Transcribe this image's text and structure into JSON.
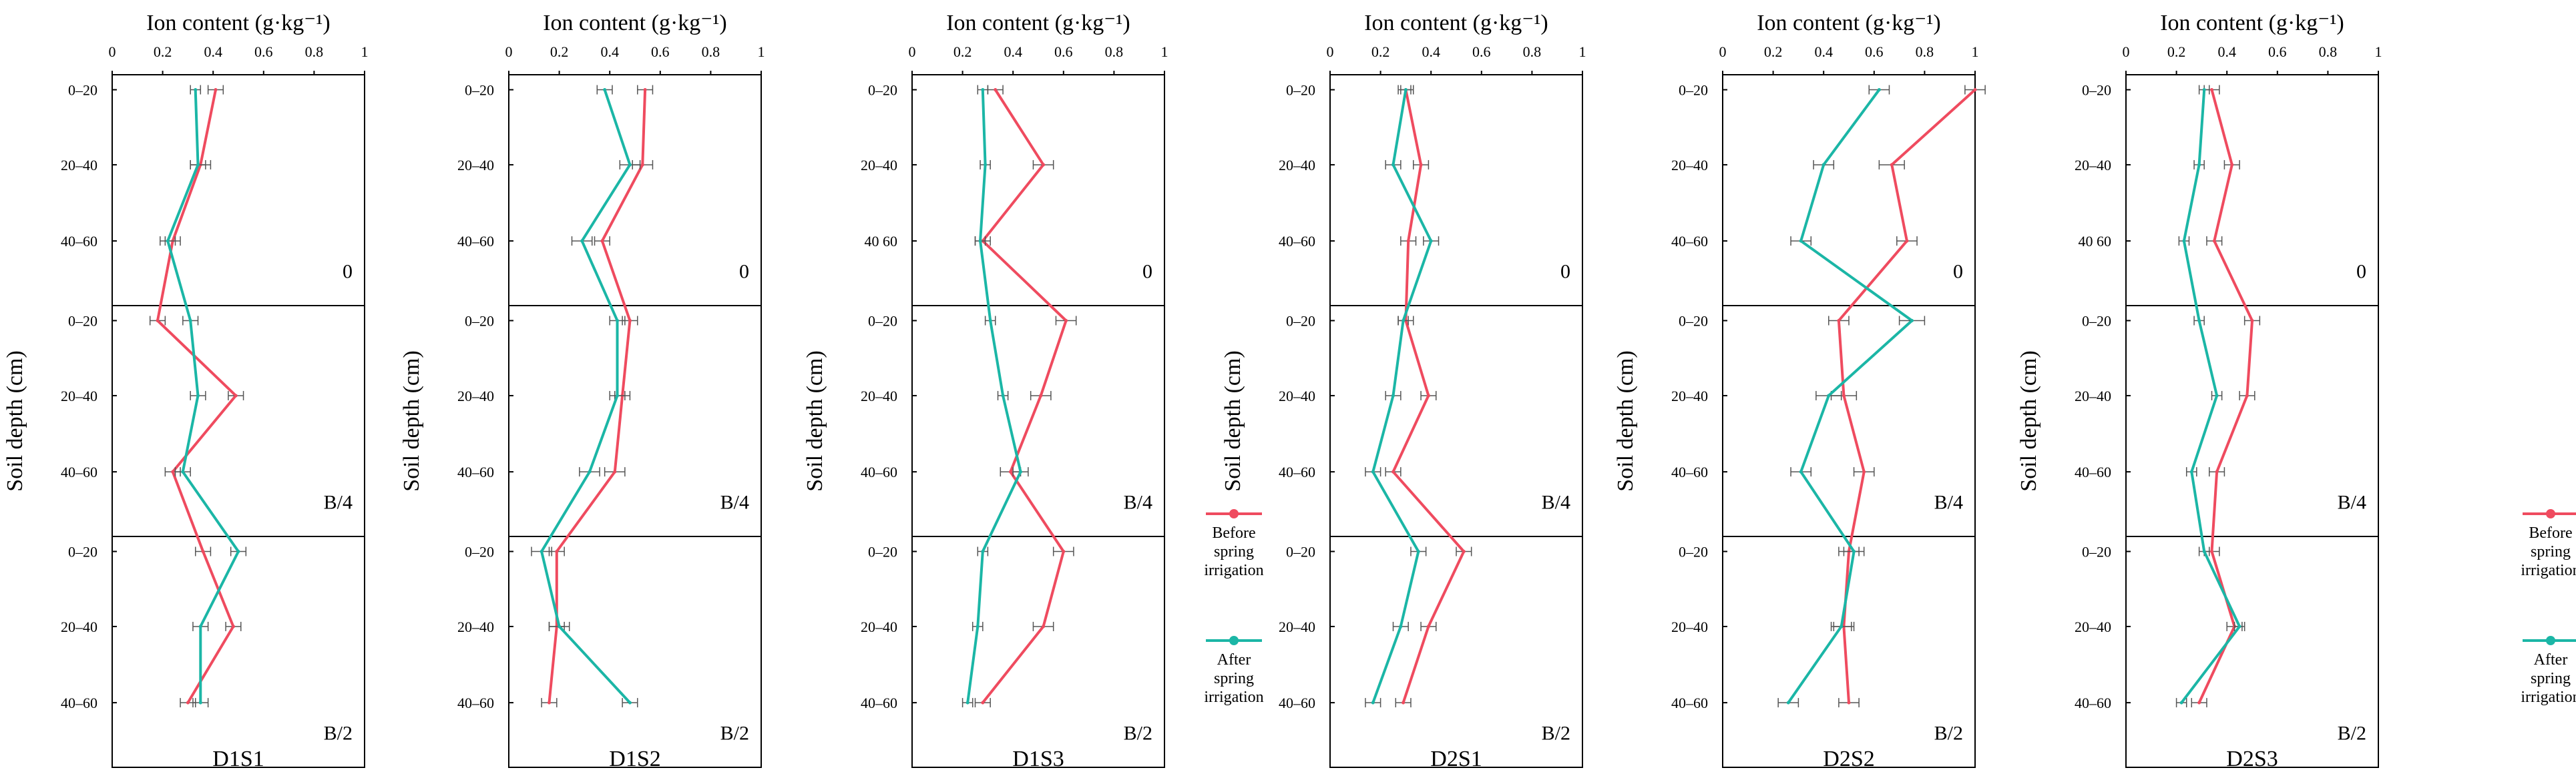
{
  "chart_data": {
    "type": "line",
    "orientation": "depth-profile",
    "colors": {
      "before": "#ef4b5f",
      "after": "#1bb6a6",
      "errorbar": "#555555"
    },
    "x_title": "Ion content (g·kg⁻¹)",
    "x_ticks": [
      "0",
      "0.2",
      "0.4",
      "0.6",
      "0.8",
      "1"
    ],
    "xlim": [
      0,
      1
    ],
    "y_title": "Soil depth (cm)",
    "subplot_labels": [
      "0",
      "B/4",
      "B/2"
    ],
    "legend": [
      "Before spring irrigation",
      "After spring irrigation"
    ],
    "legend_lines": [
      [
        "Before",
        "spring",
        "irrigation"
      ],
      [
        "After",
        "spring",
        "irrigation"
      ]
    ],
    "panels": [
      {
        "name": "D1S1",
        "y_ticks": [
          [
            "0–20",
            "20–40",
            "40–60"
          ],
          [
            "0–20",
            "20–40",
            "40–60"
          ],
          [
            "0–20",
            "20–40",
            "40–60"
          ]
        ],
        "series": [
          {
            "name": "Before spring irrigation",
            "values": [
              0.41,
              0.35,
              0.24,
              0.18,
              0.49,
              0.24,
              0.36,
              0.48,
              0.3
            ],
            "errors": [
              0.03,
              0.04,
              0.03,
              0.03,
              0.03,
              0.03,
              0.03,
              0.03,
              0.03
            ]
          },
          {
            "name": "After spring irrigation",
            "values": [
              0.33,
              0.34,
              0.22,
              0.31,
              0.34,
              0.28,
              0.5,
              0.35,
              0.35
            ],
            "errors": [
              0.02,
              0.03,
              0.03,
              0.03,
              0.03,
              0.03,
              0.03,
              0.03,
              0.03
            ]
          }
        ]
      },
      {
        "name": "D1S2",
        "y_ticks": [
          [
            "0–20",
            "20–40",
            "40–60"
          ],
          [
            "0–20",
            "20–40",
            "40–60"
          ],
          [
            "0–20",
            "20–40",
            "40–60"
          ]
        ],
        "series": [
          {
            "name": "Before spring irrigation",
            "values": [
              0.54,
              0.53,
              0.37,
              0.48,
              0.45,
              0.42,
              0.19,
              0.19,
              0.16
            ],
            "errors": [
              0.03,
              0.04,
              0.03,
              0.03,
              0.03,
              0.04,
              0.03,
              0.03,
              0.03
            ]
          },
          {
            "name": "After spring irrigation",
            "values": [
              0.38,
              0.48,
              0.29,
              0.43,
              0.43,
              0.32,
              0.13,
              0.2,
              0.48
            ],
            "errors": [
              0.03,
              0.04,
              0.04,
              0.03,
              0.03,
              0.04,
              0.04,
              0.04,
              0.03
            ]
          }
        ]
      },
      {
        "name": "D1S3",
        "y_ticks": [
          [
            "0–20",
            "20–40",
            "40 60"
          ],
          [
            "0–20",
            "20–40",
            "40–60"
          ],
          [
            "0–20",
            "20–40",
            "40–60"
          ]
        ],
        "series": [
          {
            "name": "Before spring irrigation",
            "values": [
              0.33,
              0.52,
              0.28,
              0.61,
              0.51,
              0.39,
              0.6,
              0.52,
              0.28
            ],
            "errors": [
              0.03,
              0.04,
              0.03,
              0.04,
              0.04,
              0.04,
              0.04,
              0.04,
              0.03
            ]
          },
          {
            "name": "After spring irrigation",
            "values": [
              0.28,
              0.29,
              0.27,
              0.31,
              0.36,
              0.43,
              0.28,
              0.26,
              0.22
            ],
            "errors": [
              0.02,
              0.02,
              0.02,
              0.02,
              0.02,
              0.03,
              0.02,
              0.02,
              0.02
            ]
          }
        ]
      },
      {
        "name": "D2S1",
        "y_ticks": [
          [
            "0–20",
            "20–40",
            "40–60"
          ],
          [
            "0–20",
            "20–40",
            "40–60"
          ],
          [
            "0–20",
            "20–40",
            "40–60"
          ]
        ],
        "series": [
          {
            "name": "Before spring irrigation",
            "values": [
              0.3,
              0.36,
              0.31,
              0.3,
              0.39,
              0.25,
              0.53,
              0.39,
              0.29
            ],
            "errors": [
              0.03,
              0.03,
              0.03,
              0.03,
              0.03,
              0.03,
              0.03,
              0.03,
              0.03
            ]
          },
          {
            "name": "After spring irrigation",
            "values": [
              0.3,
              0.25,
              0.4,
              0.29,
              0.25,
              0.17,
              0.35,
              0.28,
              0.17
            ],
            "errors": [
              0.02,
              0.03,
              0.03,
              0.02,
              0.03,
              0.03,
              0.03,
              0.03,
              0.03
            ]
          }
        ]
      },
      {
        "name": "D2S2",
        "y_ticks": [
          [
            "0–20",
            "20–40",
            "40–60"
          ],
          [
            "0–20",
            "20–40",
            "40–60"
          ],
          [
            "0–20",
            "20–40",
            "40–60"
          ]
        ],
        "series": [
          {
            "name": "Before spring irrigation",
            "values": [
              1.0,
              0.67,
              0.73,
              0.46,
              0.48,
              0.56,
              0.5,
              0.48,
              0.5
            ],
            "errors": [
              0.04,
              0.05,
              0.04,
              0.04,
              0.05,
              0.04,
              0.04,
              0.04,
              0.04
            ]
          },
          {
            "name": "After spring irrigation",
            "values": [
              0.62,
              0.4,
              0.31,
              0.75,
              0.42,
              0.31,
              0.52,
              0.47,
              0.26
            ],
            "errors": [
              0.04,
              0.04,
              0.04,
              0.05,
              0.05,
              0.04,
              0.04,
              0.04,
              0.04
            ]
          }
        ]
      },
      {
        "name": "D2S3",
        "y_ticks": [
          [
            "0–20",
            "20–40",
            "40 60"
          ],
          [
            "0–20",
            "20–40",
            "40–60"
          ],
          [
            "0–20",
            "20–40",
            "40–60"
          ]
        ],
        "series": [
          {
            "name": "Before spring irrigation",
            "values": [
              0.34,
              0.42,
              0.35,
              0.5,
              0.48,
              0.36,
              0.34,
              0.43,
              0.29
            ],
            "errors": [
              0.03,
              0.03,
              0.03,
              0.03,
              0.03,
              0.03,
              0.03,
              0.03,
              0.03
            ]
          },
          {
            "name": "After spring irrigation",
            "values": [
              0.31,
              0.29,
              0.23,
              0.29,
              0.36,
              0.26,
              0.31,
              0.45,
              0.22
            ],
            "errors": [
              0.02,
              0.02,
              0.02,
              0.02,
              0.02,
              0.02,
              0.02,
              0.02,
              0.02
            ]
          }
        ]
      }
    ]
  }
}
